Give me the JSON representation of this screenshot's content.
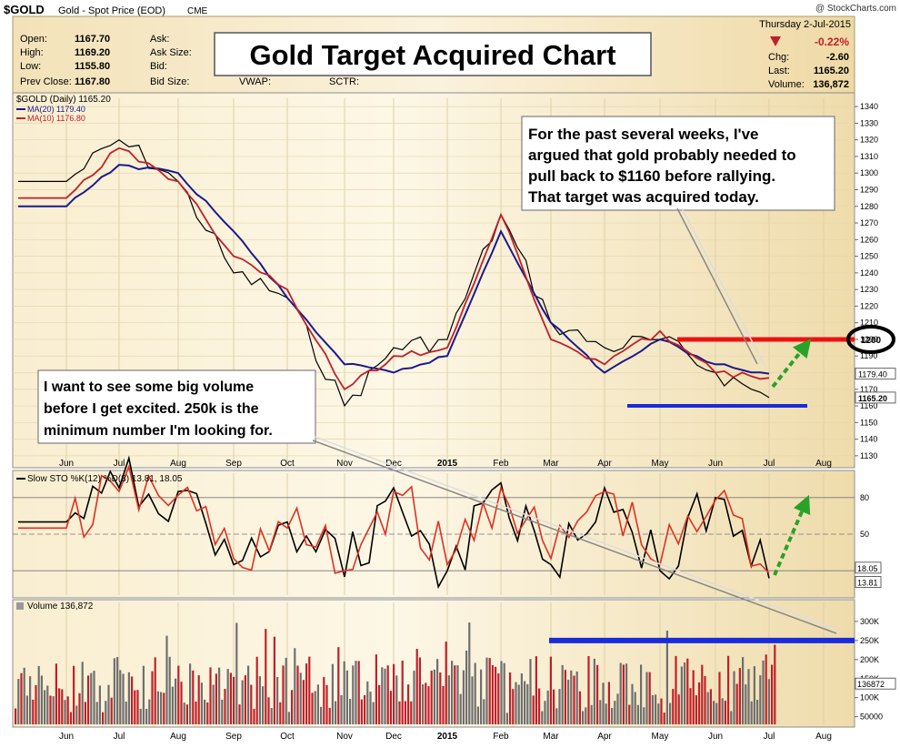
{
  "header": {
    "symbol": "$GOLD",
    "name": "Gold - Spot Price (EOD)",
    "exchange": "CME",
    "credit": "@ StockCharts.com",
    "date": "Thursday  2-Jul-2015",
    "change_pct": "-0.22%",
    "quote_left": [
      {
        "label": "Open:",
        "value": "1167.70"
      },
      {
        "label": "High:",
        "value": "1169.20"
      },
      {
        "label": "Low:",
        "value": "1155.80"
      },
      {
        "label": "Prev Close:",
        "value": "1167.80"
      }
    ],
    "quote_mid": [
      "Ask:",
      "Ask Size:",
      "Bid:",
      "Bid Size:"
    ],
    "quote_extra": [
      "VWAP:",
      "SCTR:"
    ],
    "quote_right": [
      {
        "label": "Chg:",
        "value": "-2.60"
      },
      {
        "label": "Last:",
        "value": "1165.20"
      },
      {
        "label": "Volume:",
        "value": "136,872"
      }
    ]
  },
  "title": "Gold Target Acquired Chart",
  "annotations": {
    "top_right": [
      "For the past several weeks, I've",
      "argued that gold probably needed to",
      "pull back to $1160 before rallying.",
      "That target was acquired today."
    ],
    "bottom_left": [
      "I want to see some big volume",
      "before I get excited.  250k is the",
      "minimum number I'm looking for."
    ]
  },
  "chart_data": [
    {
      "type": "line",
      "panel": "price",
      "legend": [
        "$GOLD (Daily) 1165.20",
        "MA(20) 1179.40",
        "MA(10) 1176.80"
      ],
      "series": [
        {
          "name": "$GOLD (Daily)",
          "color": "#000000",
          "x": [
            "Jun",
            "Jul",
            "Aug",
            "Sep",
            "Oct",
            "Nov",
            "Dec",
            "2015",
            "Feb",
            "Mar",
            "Apr",
            "May",
            "Jun",
            "Jul"
          ],
          "y": [
            1295,
            1320,
            1295,
            1240,
            1225,
            1160,
            1195,
            1200,
            1275,
            1210,
            1195,
            1200,
            1180,
            1165
          ]
        },
        {
          "name": "MA(20)",
          "color": "#1a1a8c",
          "x": [
            "Jun",
            "Jul",
            "Aug",
            "Sep",
            "Oct",
            "Nov",
            "Dec",
            "2015",
            "Feb",
            "Mar",
            "Apr",
            "May",
            "Jun",
            "Jul"
          ],
          "y": [
            1280,
            1305,
            1300,
            1265,
            1225,
            1185,
            1180,
            1190,
            1265,
            1210,
            1180,
            1200,
            1185,
            1179.4
          ]
        },
        {
          "name": "MA(10)",
          "color": "#c0202a",
          "x": [
            "Jun",
            "Jul",
            "Aug",
            "Sep",
            "Oct",
            "Nov",
            "Dec",
            "2015",
            "Feb",
            "Mar",
            "Apr",
            "May",
            "Jun",
            "Jul"
          ],
          "y": [
            1285,
            1315,
            1295,
            1250,
            1230,
            1170,
            1190,
            1195,
            1275,
            1200,
            1185,
            1205,
            1180,
            1176.8
          ]
        }
      ],
      "x_labels": [
        "Jun",
        "Jul",
        "Aug",
        "Sep",
        "Oct",
        "Nov",
        "Dec",
        "2015",
        "Feb",
        "Mar",
        "Apr",
        "May",
        "Jun",
        "Jul",
        "Aug"
      ],
      "y_ticks": [
        1130,
        1140,
        1150,
        1160,
        1170,
        1180,
        1190,
        1200,
        1210,
        1220,
        1230,
        1240,
        1250,
        1260,
        1270,
        1280,
        1290,
        1300,
        1310,
        1320,
        1330,
        1340
      ],
      "ylim": [
        1125,
        1345
      ],
      "price_tags": [
        "1179.40",
        "1165.20"
      ],
      "lines": [
        {
          "name": "resistance",
          "value": 1200,
          "color": "#ee1111"
        },
        {
          "name": "support",
          "value": 1160,
          "color": "#1a2bd9"
        }
      ],
      "circle_label": "1200"
    },
    {
      "type": "line",
      "panel": "stochastic",
      "legend": "Slow STO %K(12) %D(3) 13.81, 18.05",
      "legend_d_value": "18.05",
      "series": [
        {
          "name": "%K",
          "color": "#000000",
          "x": [
            "Jun",
            "Jul",
            "Aug",
            "Sep",
            "Oct",
            "Nov",
            "Dec",
            "2015",
            "Feb",
            "Mar",
            "Apr",
            "May",
            "Jun",
            "Jul"
          ],
          "y": [
            60,
            88,
            85,
            25,
            60,
            15,
            88,
            20,
            92,
            25,
            88,
            20,
            80,
            13.81
          ]
        },
        {
          "name": "%D",
          "color": "#e03020",
          "x": [
            "Jun",
            "Jul",
            "Aug",
            "Sep",
            "Oct",
            "Nov",
            "Dec",
            "2015",
            "Feb",
            "Mar",
            "Apr",
            "May",
            "Jun",
            "Jul"
          ],
          "y": [
            55,
            85,
            82,
            30,
            55,
            20,
            85,
            25,
            88,
            30,
            85,
            25,
            78,
            18.05
          ]
        }
      ],
      "y_ticks": [
        80,
        50
      ],
      "ylim": [
        0,
        100
      ],
      "tags": [
        "18.05",
        "13.81"
      ]
    },
    {
      "type": "bar",
      "panel": "volume",
      "legend": "Volume 136,872",
      "y_ticks": [
        "300K",
        "250K",
        "200K",
        "150K",
        "100K",
        "50000"
      ],
      "y_tick_values": [
        300000,
        250000,
        200000,
        150000,
        100000,
        50000
      ],
      "ylim": [
        30000,
        350000
      ],
      "last_value": "136872",
      "threshold": 250000
    }
  ]
}
